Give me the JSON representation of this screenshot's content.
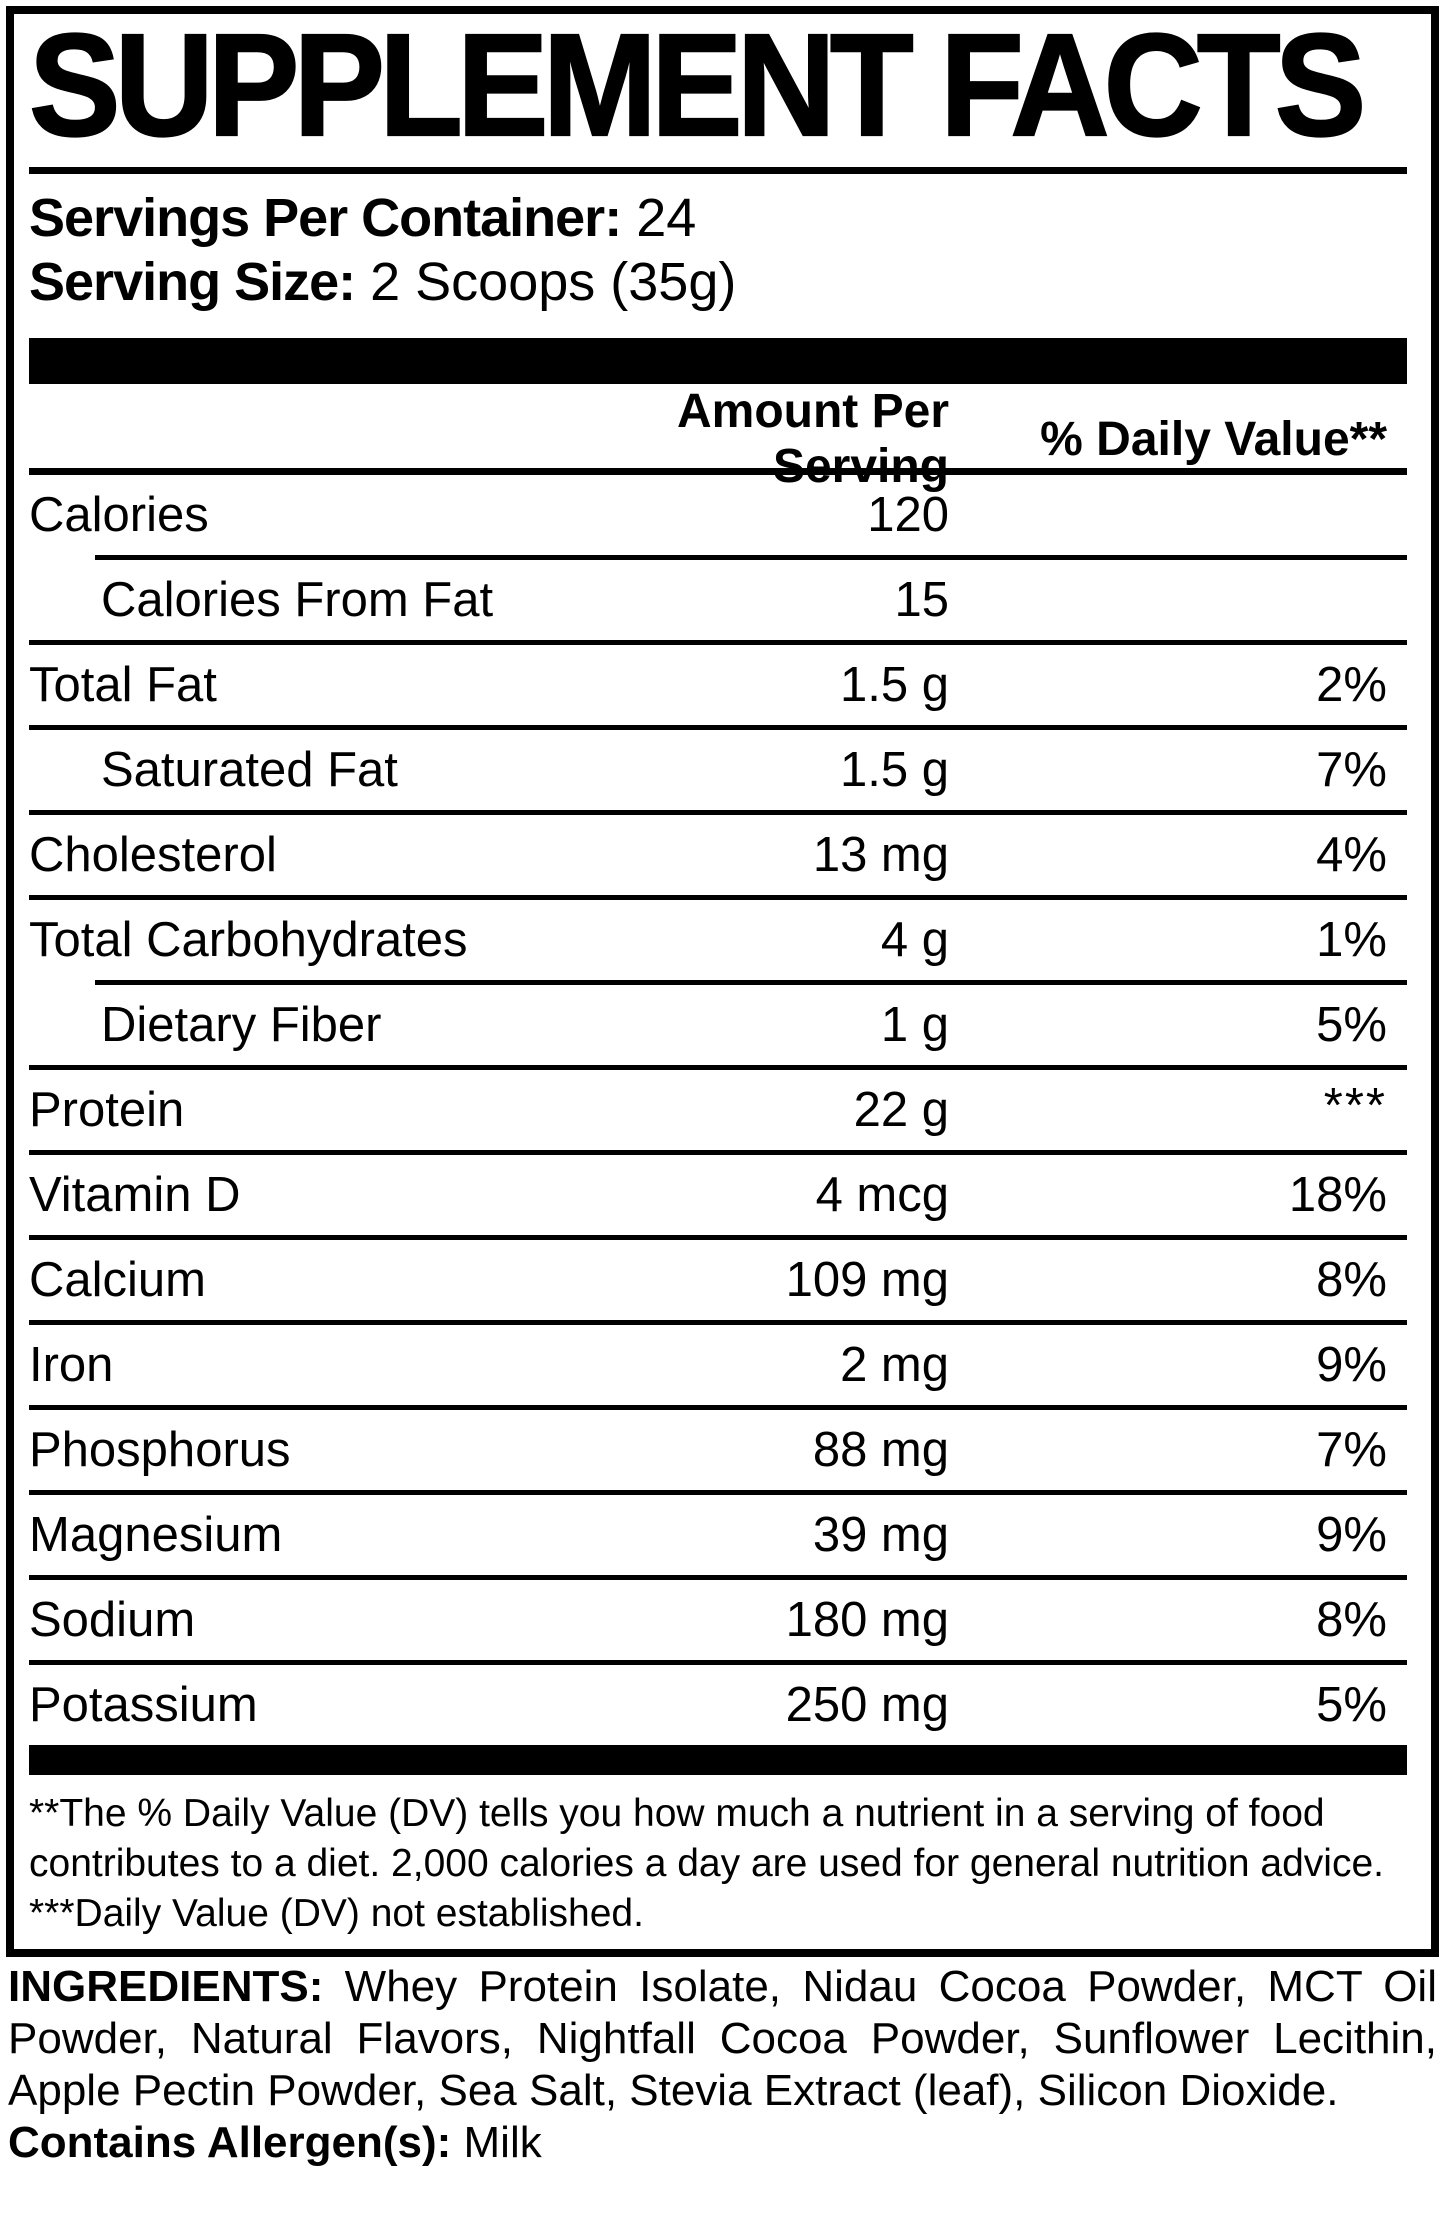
{
  "title": "SUPPLEMENT FACTS",
  "serving_info": {
    "servings_label": "Servings Per Container:",
    "servings_value": "24",
    "size_label": "Serving Size:",
    "size_value": "2 Scoops (35g)"
  },
  "table": {
    "headers": {
      "amount": "Amount Per Serving",
      "dv": "% Daily Value**"
    },
    "rows": [
      {
        "name": "Calories",
        "amount": "120",
        "dv": ""
      },
      {
        "name": "Calories From Fat",
        "amount": "15",
        "dv": ""
      },
      {
        "name": "Total Fat",
        "amount": "1.5 g",
        "dv": "2%"
      },
      {
        "name": "Saturated Fat",
        "amount": "1.5 g",
        "dv": "7%"
      },
      {
        "name": "Cholesterol",
        "amount": "13 mg",
        "dv": "4%"
      },
      {
        "name": "Total Carbohydrates",
        "amount": "4 g",
        "dv": "1%"
      },
      {
        "name": "Dietary Fiber",
        "amount": "1 g",
        "dv": "5%"
      },
      {
        "name": "Protein",
        "amount": "22 g",
        "dv": "***"
      },
      {
        "name": "Vitamin D",
        "amount": "4 mcg",
        "dv": "18%"
      },
      {
        "name": "Calcium",
        "amount": "109 mg",
        "dv": "8%"
      },
      {
        "name": "Iron",
        "amount": "2 mg",
        "dv": "9%"
      },
      {
        "name": "Phosphorus",
        "amount": "88 mg",
        "dv": "7%"
      },
      {
        "name": "Magnesium",
        "amount": "39 mg",
        "dv": "9%"
      },
      {
        "name": "Sodium",
        "amount": "180 mg",
        "dv": "8%"
      },
      {
        "name": "Potassium",
        "amount": "250 mg",
        "dv": "5%"
      }
    ]
  },
  "footnotes": [
    "**The % Daily Value (DV) tells you how much a nutrient in a serving of food contributes to a diet. 2,000 calories a day are used for general nutrition advice.",
    "***Daily Value (DV) not established."
  ],
  "ingredients": {
    "label": "INGREDIENTS:",
    "text": "Whey Protein Isolate, Nidau Cocoa Powder, MCT Oil Powder, Natural Flavors, Nightfall Cocoa Powder, Sunflower Lecithin, Apple Pectin Powder, Sea Salt, Stevia Extract (leaf), Silicon Dioxide.",
    "allergen_label": "Contains Allergen(s):",
    "allergen_value": "Milk"
  },
  "colors": {
    "text": "#000000",
    "background": "#ffffff"
  }
}
